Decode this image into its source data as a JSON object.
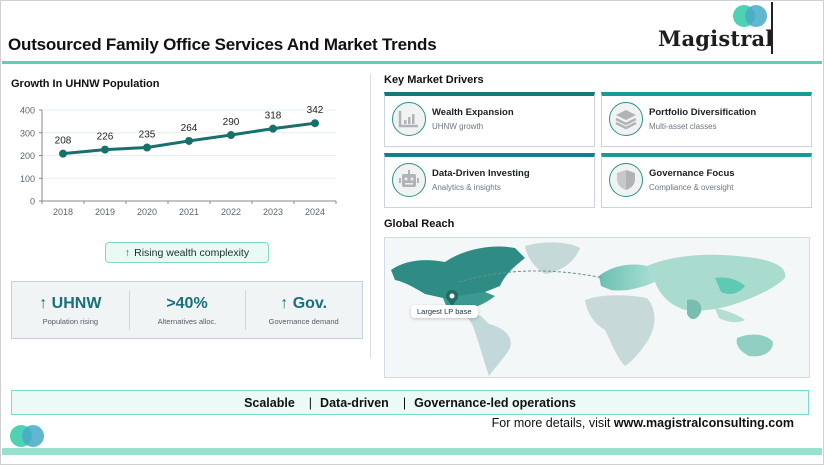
{
  "header": {
    "title": "Outsourced Family Office Services And Market Trends",
    "logo_text": "Magistral"
  },
  "left": {
    "chart_title": "Growth In UHNW Population",
    "pill": {
      "icon": "arrow-up-icon",
      "arrow": "↑",
      "label": "Rising wealth complexity"
    },
    "kpis": [
      {
        "value": "↑ UHNW",
        "label": "Population rising"
      },
      {
        "value": ">40%",
        "label": "Alternatives alloc."
      },
      {
        "value": "↑ Gov.",
        "label": "Governance demand"
      }
    ]
  },
  "right": {
    "drivers_title": "Key Market Drivers",
    "drivers": [
      {
        "icon": "bar-chart-icon",
        "title": "Wealth Expansion",
        "subtitle": "UHNW growth"
      },
      {
        "icon": "layers-icon",
        "title": "Portfolio Diversification",
        "subtitle": "Multi-asset classes"
      },
      {
        "icon": "robot-icon",
        "title": "Data-Driven Investing",
        "subtitle": "Analytics & insights"
      },
      {
        "icon": "shield-icon",
        "title": "Governance Focus",
        "subtitle": "Compliance & oversight"
      }
    ],
    "reach_title": "Global Reach",
    "map_tag": "Largest LP base"
  },
  "footer": {
    "banner": [
      "Scalable",
      "Data-driven",
      "Governance-led operations"
    ],
    "separator": "|",
    "visit_prefix": "For more details, visit ",
    "visit_url": "www.magistralconsulting.com"
  },
  "colors": {
    "accent": "#5ccfb7",
    "line": "#17706b",
    "kpi": "#17707a",
    "banner_bg": "#ebfaf6"
  },
  "chart_data": {
    "type": "line",
    "title": "Growth In UHNW Population",
    "categories": [
      "2018",
      "2019",
      "2020",
      "2021",
      "2022",
      "2023",
      "2024"
    ],
    "values": [
      208,
      226,
      235,
      264,
      290,
      318,
      342
    ],
    "series": [
      {
        "name": "UHNW Population",
        "values": [
          208,
          226,
          235,
          264,
          290,
          318,
          342
        ]
      }
    ],
    "xlabel": "",
    "ylabel": "",
    "ylim": [
      0,
      400
    ],
    "yticks": [
      0,
      100,
      200,
      300,
      400
    ],
    "grid": true,
    "legend": "none",
    "data_labels": true
  }
}
